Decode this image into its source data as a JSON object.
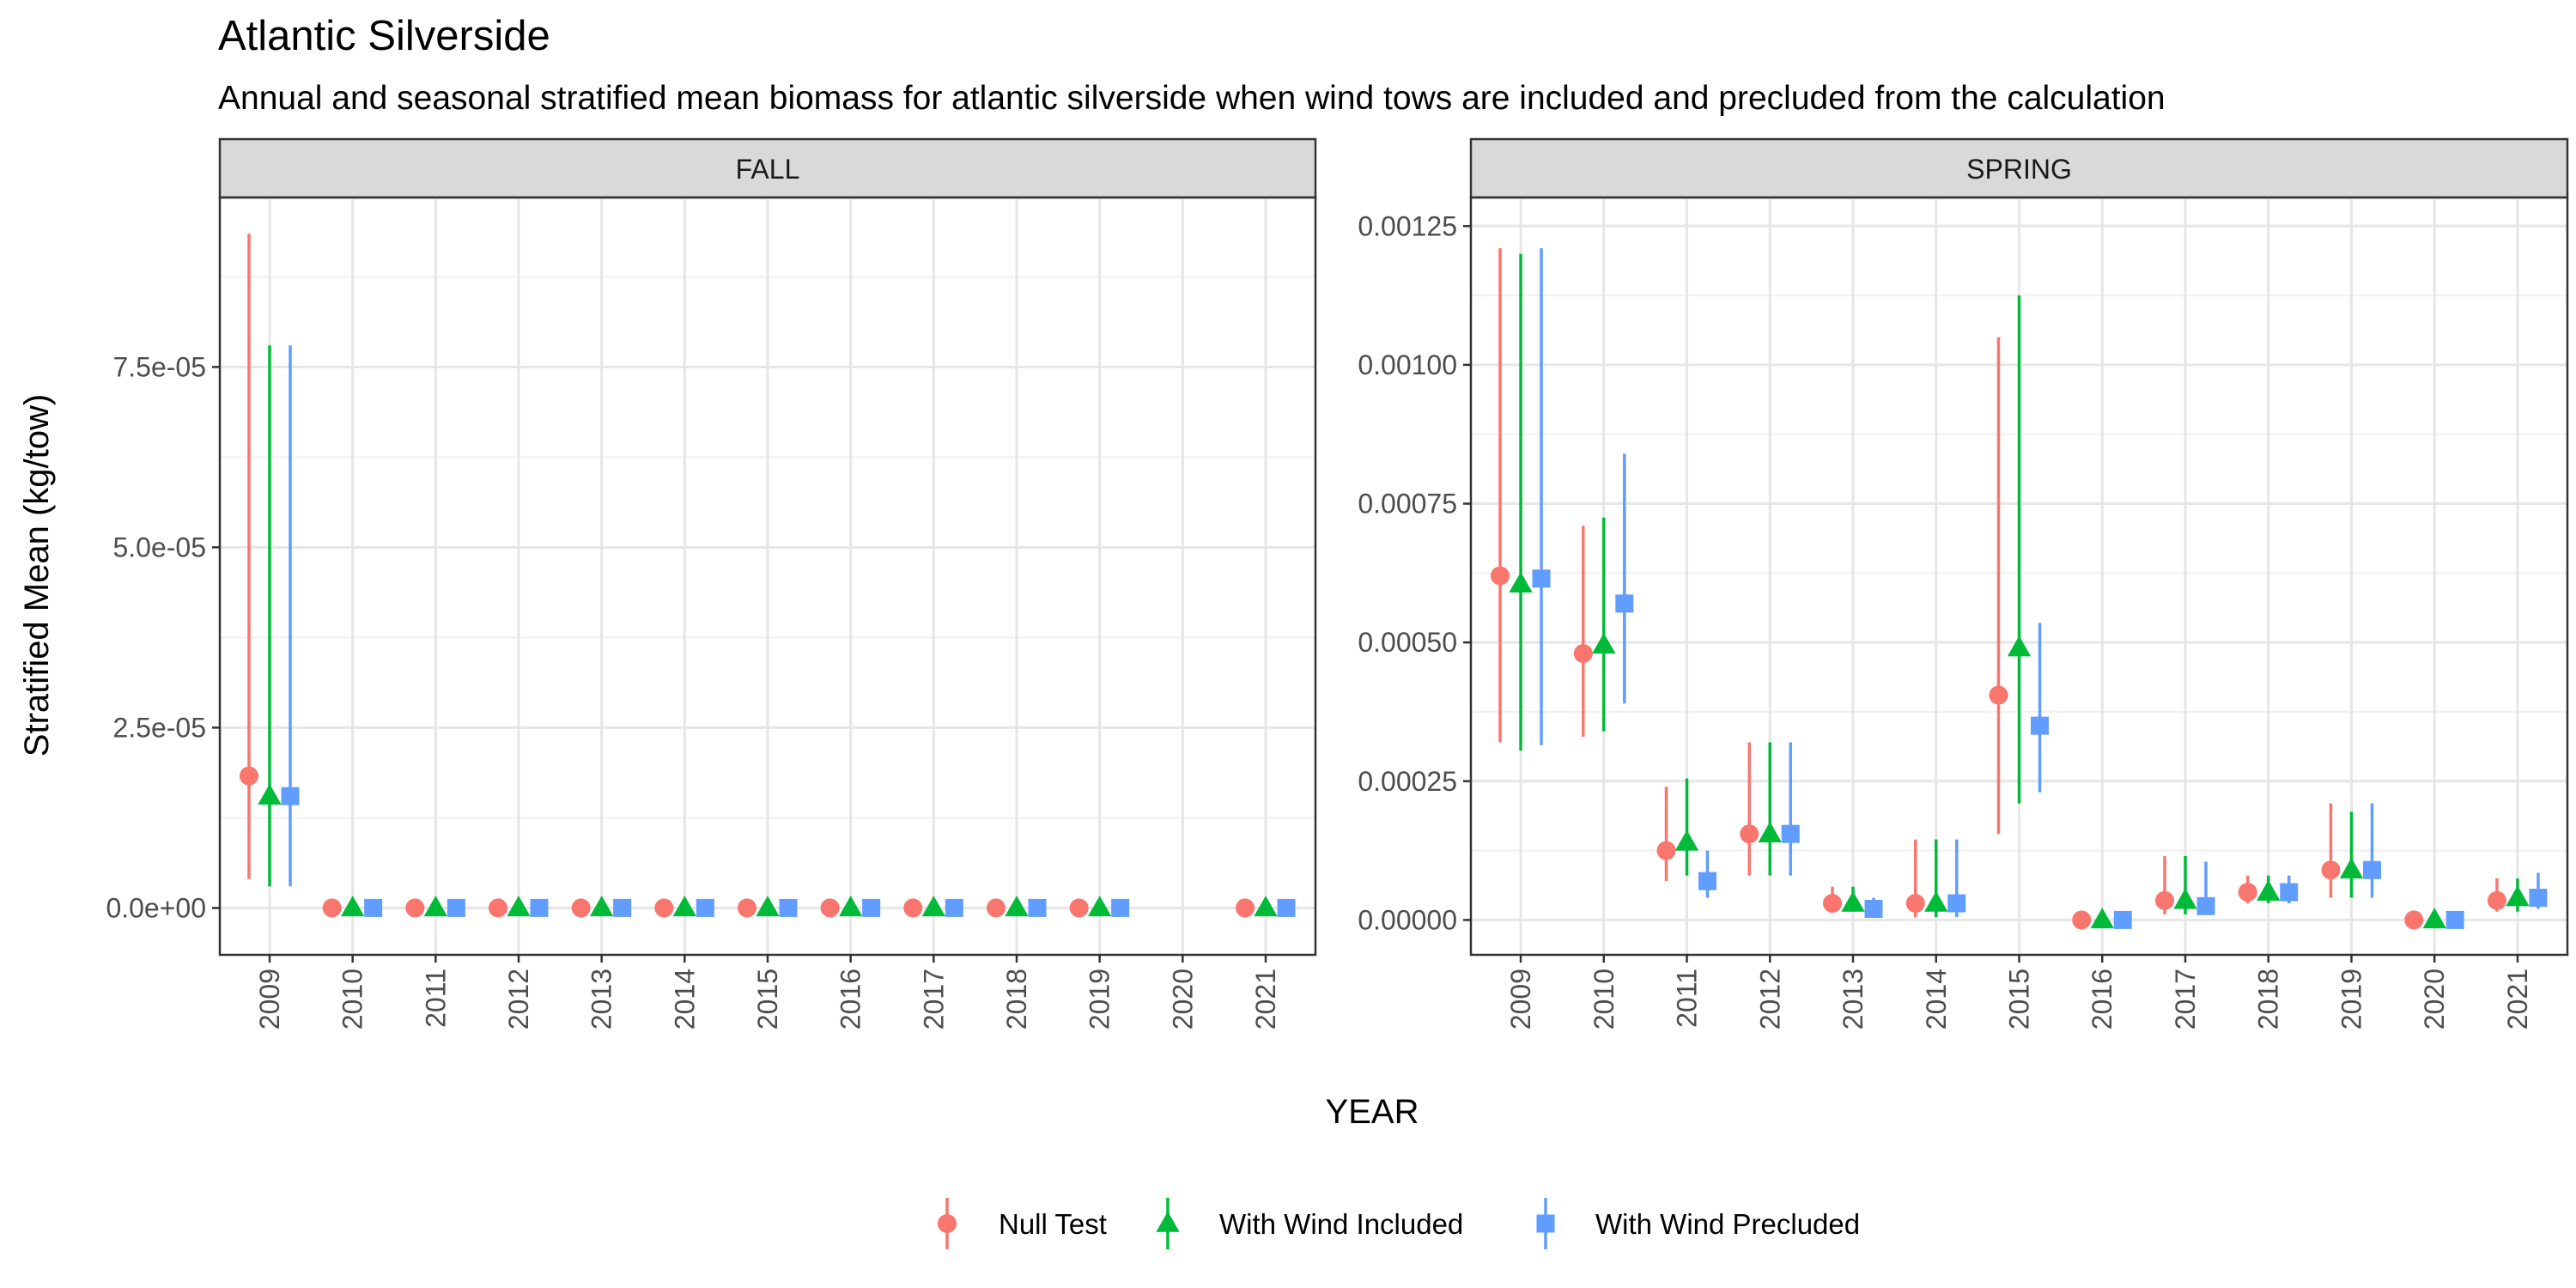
{
  "chart_data": {
    "type": "scatter",
    "title": "Atlantic Silverside",
    "subtitle": "Annual and seasonal stratified mean biomass for atlantic silverside when wind tows are included and precluded from the calculation",
    "xlabel": "YEAR",
    "ylabel": "Stratified Mean (kg/tow)",
    "grid": true,
    "legend_position": "bottom",
    "series_meta": [
      {
        "name": "Null Test",
        "color": "#F8766D",
        "shape": "circle"
      },
      {
        "name": "With Wind Included",
        "color": "#00BA38",
        "shape": "triangle"
      },
      {
        "name": "With Wind Precluded",
        "color": "#619CFF",
        "shape": "square"
      }
    ],
    "panels": [
      {
        "strip": "FALL",
        "x_categories": [
          "2009",
          "2010",
          "2011",
          "2012",
          "2013",
          "2014",
          "2015",
          "2016",
          "2017",
          "2018",
          "2019",
          "2020",
          "2021"
        ],
        "ylim": [
          -6.5e-06,
          9.85e-05
        ],
        "y_ticks": [
          0,
          2.5e-05,
          5e-05,
          7.5e-05
        ],
        "y_tick_labels": [
          "0.0e+00",
          "2.5e-05",
          "5.0e-05",
          "7.5e-05"
        ],
        "series": [
          {
            "name": "Null Test",
            "points": [
              {
                "x": "2009",
                "y": 1.83e-05,
                "lo": 4e-06,
                "hi": 9.35e-05
              },
              {
                "x": "2010",
                "y": 0,
                "lo": 0,
                "hi": 0
              },
              {
                "x": "2011",
                "y": 0,
                "lo": 0,
                "hi": 0
              },
              {
                "x": "2012",
                "y": 0,
                "lo": 0,
                "hi": 0
              },
              {
                "x": "2013",
                "y": 0,
                "lo": 0,
                "hi": 0
              },
              {
                "x": "2014",
                "y": 0,
                "lo": 0,
                "hi": 0
              },
              {
                "x": "2015",
                "y": 0,
                "lo": 0,
                "hi": 0
              },
              {
                "x": "2016",
                "y": 0,
                "lo": 0,
                "hi": 0
              },
              {
                "x": "2017",
                "y": 0,
                "lo": 0,
                "hi": 0
              },
              {
                "x": "2018",
                "y": 0,
                "lo": 0,
                "hi": 0
              },
              {
                "x": "2019",
                "y": 0,
                "lo": 0,
                "hi": 0
              },
              {
                "x": "2021",
                "y": 0,
                "lo": 0,
                "hi": 0
              }
            ]
          },
          {
            "name": "With Wind Included",
            "points": [
              {
                "x": "2009",
                "y": 1.55e-05,
                "lo": 3e-06,
                "hi": 7.8e-05
              },
              {
                "x": "2010",
                "y": 0,
                "lo": 0,
                "hi": 0
              },
              {
                "x": "2011",
                "y": 0,
                "lo": 0,
                "hi": 0
              },
              {
                "x": "2012",
                "y": 0,
                "lo": 0,
                "hi": 0
              },
              {
                "x": "2013",
                "y": 0,
                "lo": 0,
                "hi": 0
              },
              {
                "x": "2014",
                "y": 0,
                "lo": 0,
                "hi": 0
              },
              {
                "x": "2015",
                "y": 0,
                "lo": 0,
                "hi": 0
              },
              {
                "x": "2016",
                "y": 0,
                "lo": 0,
                "hi": 0
              },
              {
                "x": "2017",
                "y": 0,
                "lo": 0,
                "hi": 0
              },
              {
                "x": "2018",
                "y": 0,
                "lo": 0,
                "hi": 0
              },
              {
                "x": "2019",
                "y": 0,
                "lo": 0,
                "hi": 0
              },
              {
                "x": "2021",
                "y": 0,
                "lo": 0,
                "hi": 0
              }
            ]
          },
          {
            "name": "With Wind Precluded",
            "points": [
              {
                "x": "2009",
                "y": 1.55e-05,
                "lo": 3e-06,
                "hi": 7.8e-05
              },
              {
                "x": "2010",
                "y": 0,
                "lo": 0,
                "hi": 0
              },
              {
                "x": "2011",
                "y": 0,
                "lo": 0,
                "hi": 0
              },
              {
                "x": "2012",
                "y": 0,
                "lo": 0,
                "hi": 0
              },
              {
                "x": "2013",
                "y": 0,
                "lo": 0,
                "hi": 0
              },
              {
                "x": "2014",
                "y": 0,
                "lo": 0,
                "hi": 0
              },
              {
                "x": "2015",
                "y": 0,
                "lo": 0,
                "hi": 0
              },
              {
                "x": "2016",
                "y": 0,
                "lo": 0,
                "hi": 0
              },
              {
                "x": "2017",
                "y": 0,
                "lo": 0,
                "hi": 0
              },
              {
                "x": "2018",
                "y": 0,
                "lo": 0,
                "hi": 0
              },
              {
                "x": "2019",
                "y": 0,
                "lo": 0,
                "hi": 0
              },
              {
                "x": "2021",
                "y": 0,
                "lo": 0,
                "hi": 0
              }
            ]
          }
        ]
      },
      {
        "strip": "SPRING",
        "x_categories": [
          "2009",
          "2010",
          "2011",
          "2012",
          "2013",
          "2014",
          "2015",
          "2016",
          "2017",
          "2018",
          "2019",
          "2020",
          "2021"
        ],
        "ylim": [
          -6.28e-05,
          0.0013015
        ],
        "y_ticks": [
          0,
          0.00025,
          0.0005,
          0.00075,
          0.001,
          0.00125
        ],
        "y_tick_labels": [
          "0.00000",
          "0.00025",
          "0.00050",
          "0.00075",
          "0.00100",
          "0.00125"
        ],
        "series": [
          {
            "name": "Null Test",
            "points": [
              {
                "x": "2009",
                "y": 0.00062,
                "lo": 0.00032,
                "hi": 0.00121
              },
              {
                "x": "2010",
                "y": 0.00048,
                "lo": 0.00033,
                "hi": 0.00071
              },
              {
                "x": "2011",
                "y": 0.000125,
                "lo": 7e-05,
                "hi": 0.00024
              },
              {
                "x": "2012",
                "y": 0.000155,
                "lo": 8e-05,
                "hi": 0.00032
              },
              {
                "x": "2013",
                "y": 3e-05,
                "lo": 1.5e-05,
                "hi": 6e-05
              },
              {
                "x": "2014",
                "y": 3e-05,
                "lo": 5e-06,
                "hi": 0.000145
              },
              {
                "x": "2015",
                "y": 0.000405,
                "lo": 0.000155,
                "hi": 0.00105
              },
              {
                "x": "2016",
                "y": 0,
                "lo": 0,
                "hi": 0
              },
              {
                "x": "2017",
                "y": 3.5e-05,
                "lo": 1e-05,
                "hi": 0.000115
              },
              {
                "x": "2018",
                "y": 5e-05,
                "lo": 3e-05,
                "hi": 8e-05
              },
              {
                "x": "2019",
                "y": 9e-05,
                "lo": 4e-05,
                "hi": 0.00021
              },
              {
                "x": "2020",
                "y": 0,
                "lo": 0,
                "hi": 0
              },
              {
                "x": "2021",
                "y": 3.5e-05,
                "lo": 1.5e-05,
                "hi": 7.5e-05
              }
            ]
          },
          {
            "name": "With Wind Included",
            "points": [
              {
                "x": "2009",
                "y": 0.000605,
                "lo": 0.000305,
                "hi": 0.0012
              },
              {
                "x": "2010",
                "y": 0.000495,
                "lo": 0.00034,
                "hi": 0.000725
              },
              {
                "x": "2011",
                "y": 0.00014,
                "lo": 8e-05,
                "hi": 0.000255
              },
              {
                "x": "2012",
                "y": 0.000155,
                "lo": 8e-05,
                "hi": 0.00032
              },
              {
                "x": "2013",
                "y": 3e-05,
                "lo": 1.5e-05,
                "hi": 6e-05
              },
              {
                "x": "2014",
                "y": 3e-05,
                "lo": 5e-06,
                "hi": 0.000145
              },
              {
                "x": "2015",
                "y": 0.00049,
                "lo": 0.00021,
                "hi": 0.001125
              },
              {
                "x": "2016",
                "y": 0,
                "lo": 0,
                "hi": 0
              },
              {
                "x": "2017",
                "y": 3.5e-05,
                "lo": 1e-05,
                "hi": 0.000115
              },
              {
                "x": "2018",
                "y": 5e-05,
                "lo": 3e-05,
                "hi": 8e-05
              },
              {
                "x": "2019",
                "y": 9e-05,
                "lo": 4e-05,
                "hi": 0.000195
              },
              {
                "x": "2020",
                "y": 0,
                "lo": 0,
                "hi": 0
              },
              {
                "x": "2021",
                "y": 4e-05,
                "lo": 1.5e-05,
                "hi": 7.5e-05
              }
            ]
          },
          {
            "name": "With Wind Precluded",
            "points": [
              {
                "x": "2009",
                "y": 0.000615,
                "lo": 0.000315,
                "hi": 0.00121
              },
              {
                "x": "2010",
                "y": 0.00057,
                "lo": 0.00039,
                "hi": 0.00084
              },
              {
                "x": "2011",
                "y": 7e-05,
                "lo": 4e-05,
                "hi": 0.000125
              },
              {
                "x": "2012",
                "y": 0.000155,
                "lo": 8e-05,
                "hi": 0.00032
              },
              {
                "x": "2013",
                "y": 2e-05,
                "lo": 1e-05,
                "hi": 4e-05
              },
              {
                "x": "2014",
                "y": 3e-05,
                "lo": 5e-06,
                "hi": 0.000145
              },
              {
                "x": "2015",
                "y": 0.00035,
                "lo": 0.00023,
                "hi": 0.000535
              },
              {
                "x": "2016",
                "y": 0,
                "lo": 0,
                "hi": 0
              },
              {
                "x": "2017",
                "y": 2.5e-05,
                "lo": 1e-05,
                "hi": 0.000105
              },
              {
                "x": "2018",
                "y": 5e-05,
                "lo": 3e-05,
                "hi": 8e-05
              },
              {
                "x": "2019",
                "y": 9e-05,
                "lo": 4e-05,
                "hi": 0.00021
              },
              {
                "x": "2020",
                "y": 0,
                "lo": 0,
                "hi": 0
              },
              {
                "x": "2021",
                "y": 4e-05,
                "lo": 2e-05,
                "hi": 8.5e-05
              }
            ]
          }
        ]
      }
    ]
  }
}
